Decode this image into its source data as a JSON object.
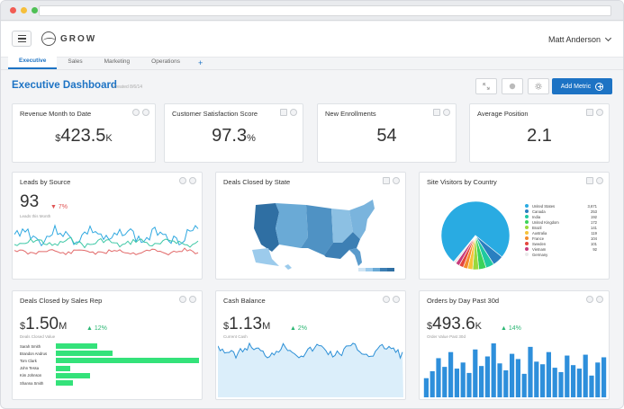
{
  "header": {
    "logo_text": "GROW",
    "user_name": "Matt Anderson"
  },
  "tabs": [
    {
      "label": "Executive",
      "active": true
    },
    {
      "label": "Sales",
      "active": false
    },
    {
      "label": "Marketing",
      "active": false
    },
    {
      "label": "Operations",
      "active": false
    }
  ],
  "tab_add_label": "+",
  "page": {
    "title": "Executive Dashboard",
    "subtitle": "Created 8/6/14",
    "add_metric_label": "Add Metric"
  },
  "kpis": {
    "revenue": {
      "title": "Revenue Month to Date",
      "prefix": "$",
      "value": "423.5",
      "suffix": "K"
    },
    "csat": {
      "title": "Customer Satisfaction Score",
      "value": "97.3",
      "suffix": "%"
    },
    "enrollments": {
      "title": "New Enrollments",
      "value": "54"
    },
    "position": {
      "title": "Average Position",
      "value": "2.1"
    }
  },
  "leads": {
    "title": "Leads by Source",
    "value": "93",
    "delta": "7%",
    "sub": "Leads this Month"
  },
  "deals_state": {
    "title": "Deals Closed by State"
  },
  "visitors": {
    "title": "Site Visitors by Country",
    "countries": [
      {
        "name": "United States",
        "value": "3,671",
        "color": "#29abe2"
      },
      {
        "name": "Canada",
        "value": "253",
        "color": "#2a7fc0"
      },
      {
        "name": "India",
        "value": "192",
        "color": "#1fc9a0"
      },
      {
        "name": "United Kingdom",
        "value": "172",
        "color": "#3bd35a"
      },
      {
        "name": "Brazil",
        "value": "141",
        "color": "#9ad83c"
      },
      {
        "name": "Australia",
        "value": "119",
        "color": "#f6c339"
      },
      {
        "name": "France",
        "value": "104",
        "color": "#f38b2c"
      },
      {
        "name": "Sweden",
        "value": "101",
        "color": "#e5473d"
      },
      {
        "name": "Vietnam",
        "value": "92",
        "color": "#c73a7c"
      },
      {
        "name": "Germany",
        "value": "",
        "color": "#e8e8e8"
      }
    ]
  },
  "deals_rep": {
    "title": "Deals Closed by Sales Rep",
    "prefix": "$",
    "value": "1.50",
    "suffix": "M",
    "delta": "12%",
    "sub": "Deals Closed Value",
    "reps": [
      {
        "name": "Sarah Smith",
        "value": 46
      },
      {
        "name": "Brandon Andrus",
        "value": 63
      },
      {
        "name": "Tom Clark",
        "value": 159
      },
      {
        "name": "John Tessa",
        "value": 16
      },
      {
        "name": "Kim Johnson",
        "value": 38
      },
      {
        "name": "Shanna Smith",
        "value": 19
      }
    ]
  },
  "cash": {
    "title": "Cash Balance",
    "prefix": "$",
    "value": "1.13",
    "suffix": "M",
    "delta": "2%",
    "sub": "Current Cash"
  },
  "orders": {
    "title": "Orders by Day Past 30d",
    "prefix": "$",
    "value": "493.6",
    "suffix": "K",
    "delta": "14%",
    "sub": "Order Value Past 30d",
    "daily": [
      22,
      30,
      45,
      35,
      52,
      33,
      40,
      28,
      55,
      36,
      47,
      62,
      39,
      31,
      50,
      44,
      27,
      58,
      41,
      38,
      52,
      34,
      29,
      48,
      37,
      33,
      49,
      25,
      40,
      46
    ]
  }
}
